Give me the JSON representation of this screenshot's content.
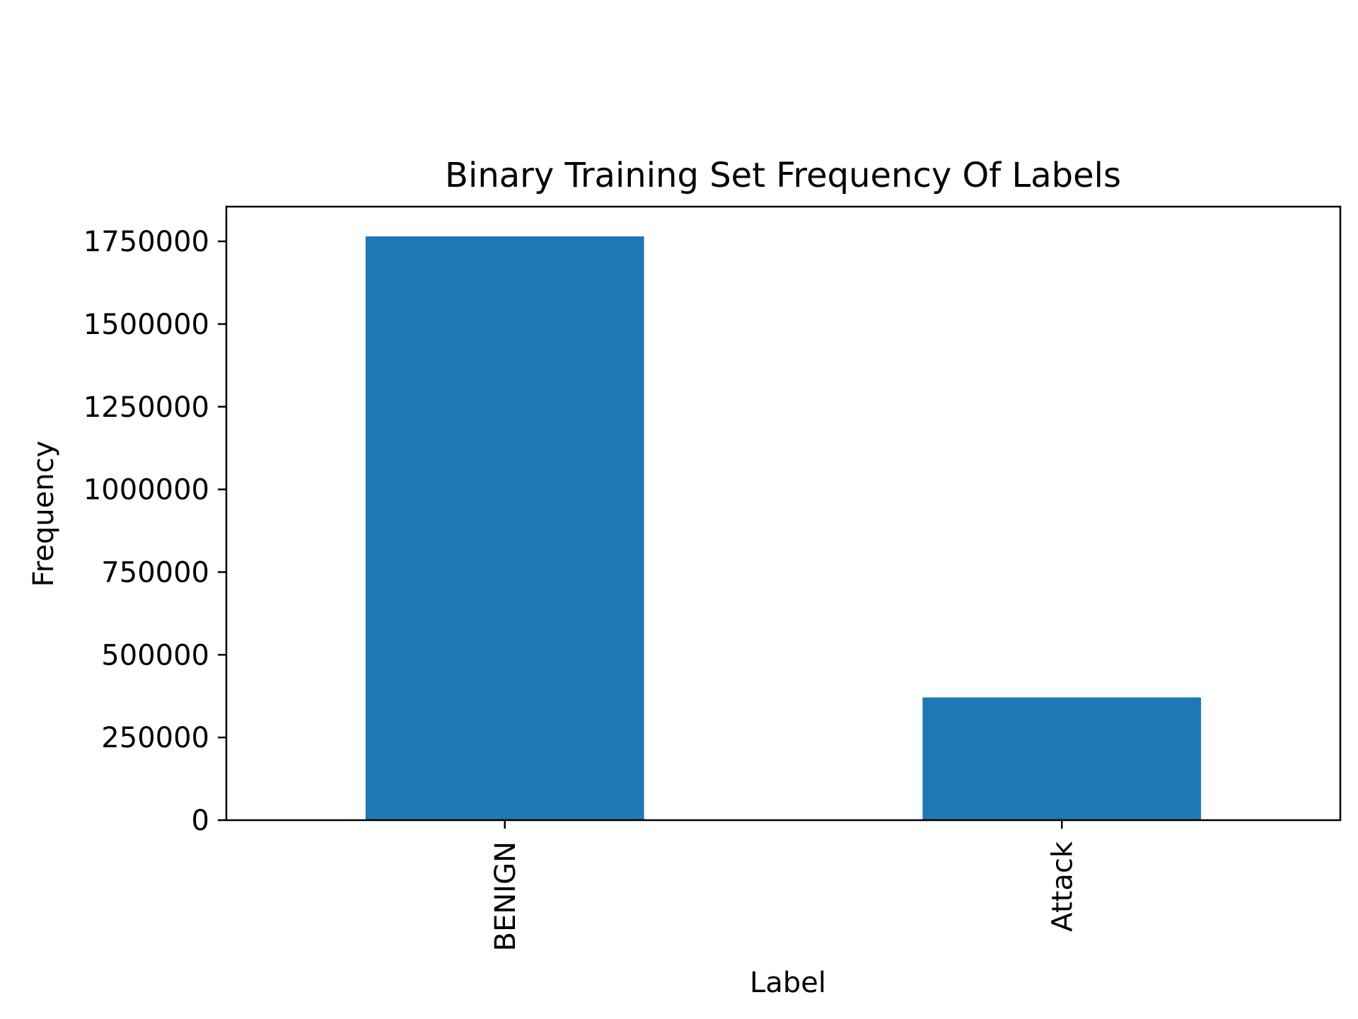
{
  "chart_data": {
    "type": "bar",
    "title": "Binary Training Set  Frequency Of  Labels",
    "xlabel": "Label",
    "ylabel": "Frequency",
    "categories": [
      "BENIGN",
      "Attack"
    ],
    "values": [
      1765000,
      371000
    ],
    "ylim": [
      0,
      1855000
    ],
    "yticks": [
      0,
      250000,
      500000,
      750000,
      1000000,
      1250000,
      1500000,
      1750000
    ],
    "ytick_labels": [
      "0",
      "250000",
      "500000",
      "750000",
      "1000000",
      "1250000",
      "1500000",
      "1750000"
    ],
    "bar_color": "#1f77b4",
    "grid": false,
    "legend": "none"
  }
}
